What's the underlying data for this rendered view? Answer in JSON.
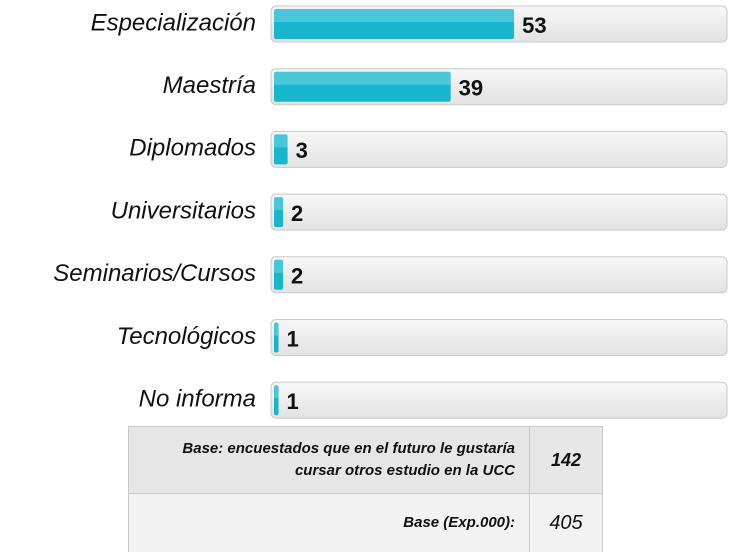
{
  "chart_data": {
    "type": "bar",
    "orientation": "horizontal",
    "categories": [
      "Especialización",
      "Maestría",
      "Diplomados",
      "Universitarios",
      "Seminarios/Cursos",
      "Tecnológicos",
      "No informa"
    ],
    "values": [
      53,
      39,
      3,
      2,
      2,
      1,
      1
    ],
    "color": "#17b6cc",
    "xlim": [
      0,
      100
    ]
  },
  "table": {
    "rows": [
      [
        "Base: encuestados que en el futuro le gustaría cursar otros estudio en la UCC",
        "142"
      ],
      [
        "Base (Exp.000):",
        "405"
      ]
    ]
  }
}
